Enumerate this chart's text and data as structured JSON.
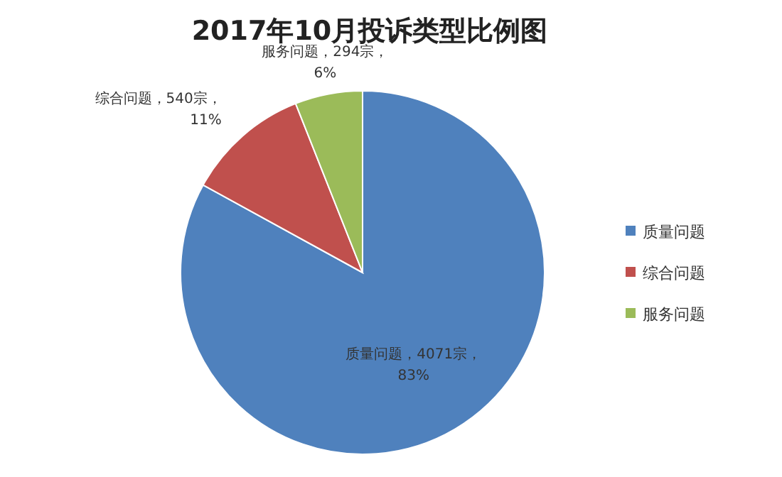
{
  "chart_data": {
    "type": "pie",
    "title": "2017年10月投诉类型比例图",
    "categories": [
      "质量问题",
      "综合问题",
      "服务问题"
    ],
    "values": [
      4071,
      540,
      294
    ],
    "colors": [
      "#4f81bd",
      "#c0504d",
      "#9bbb59"
    ],
    "value_labels": [
      "质量问题，4071宗，\n83%",
      "综合问题，540宗，\n11%",
      "服务问题，294宗，\n6%"
    ],
    "legend": "right"
  }
}
